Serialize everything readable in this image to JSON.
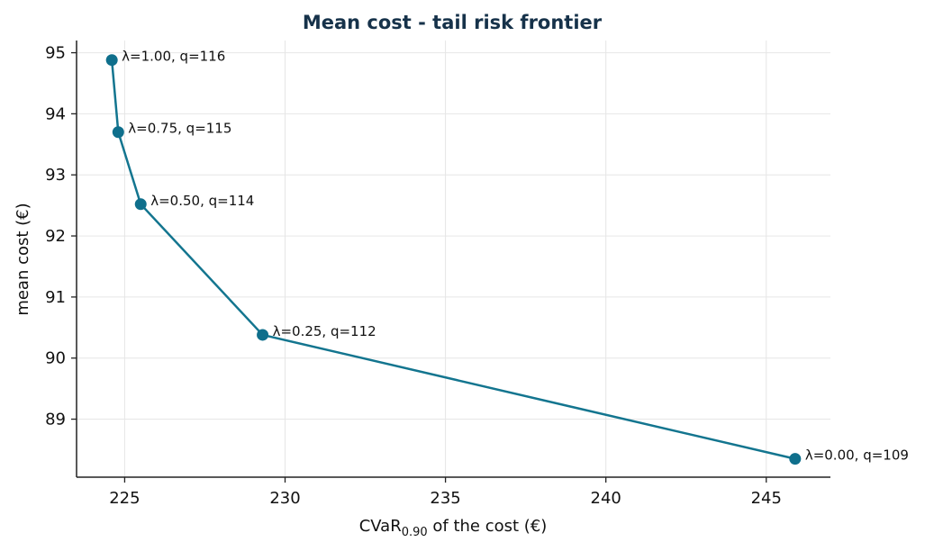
{
  "chart_data": {
    "type": "line",
    "title": "Mean cost - tail risk frontier",
    "xlabel": {
      "main": "CVaR",
      "sub": "0.90",
      "rest": " of the cost (€)"
    },
    "ylabel": "mean cost (€)",
    "xlim": [
      223.5,
      247
    ],
    "ylim": [
      88.05,
      95.2
    ],
    "x_ticks": [
      225,
      230,
      235,
      240,
      245
    ],
    "y_ticks": [
      89,
      90,
      91,
      92,
      93,
      94,
      95
    ],
    "grid": true,
    "line_color": "#13758f",
    "marker_color": "#0f6f8c",
    "points": [
      {
        "x": 224.6,
        "y": 94.88,
        "label": "λ=1.00, q=116"
      },
      {
        "x": 224.8,
        "y": 93.7,
        "label": "λ=0.75, q=115"
      },
      {
        "x": 225.5,
        "y": 92.52,
        "label": "λ=0.50, q=114"
      },
      {
        "x": 229.3,
        "y": 90.38,
        "label": "λ=0.25, q=112"
      },
      {
        "x": 245.9,
        "y": 88.35,
        "label": "λ=0.00, q=109"
      }
    ]
  }
}
